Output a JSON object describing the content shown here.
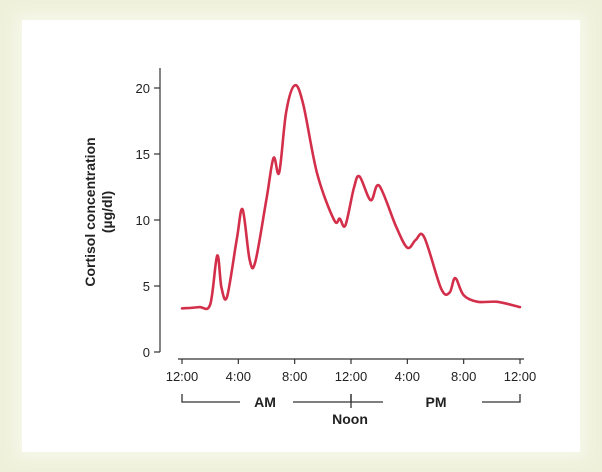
{
  "chart_data": {
    "type": "line",
    "ylabel_line1": "Cortisol concentration",
    "ylabel_line2": "(µg/dl)",
    "ylim": [
      0,
      20
    ],
    "y_ticks": [
      0,
      5,
      10,
      15,
      20
    ],
    "x_tick_labels": [
      "12:00",
      "4:00",
      "8:00",
      "12:00",
      "4:00",
      "8:00",
      "12:00"
    ],
    "xlim": [
      0,
      24
    ],
    "period_labels": {
      "am": "AM",
      "noon": "Noon",
      "pm": "PM"
    },
    "series": [
      {
        "color": "#d32f4a",
        "x": [
          0,
          1.2,
          2.0,
          2.5,
          2.8,
          3.2,
          3.9,
          4.3,
          4.8,
          5.2,
          6.0,
          6.5,
          6.9,
          7.4,
          8.0,
          8.6,
          9.6,
          10.8,
          11.2,
          11.6,
          12.2,
          12.6,
          13.4,
          14.0,
          15.2,
          16.0,
          16.6,
          17.2,
          18.4,
          19.0,
          19.4,
          20.0,
          21.0,
          22.4,
          24.0
        ],
        "y": [
          3.3,
          3.4,
          3.6,
          7.3,
          4.9,
          4.2,
          8.6,
          10.8,
          7.0,
          6.8,
          11.6,
          14.7,
          13.6,
          18.2,
          20.2,
          18.8,
          13.5,
          10.0,
          10.1,
          9.6,
          12.4,
          13.3,
          11.5,
          12.6,
          9.5,
          7.9,
          8.5,
          8.7,
          4.8,
          4.5,
          5.6,
          4.3,
          3.8,
          3.8,
          3.4
        ]
      }
    ]
  }
}
